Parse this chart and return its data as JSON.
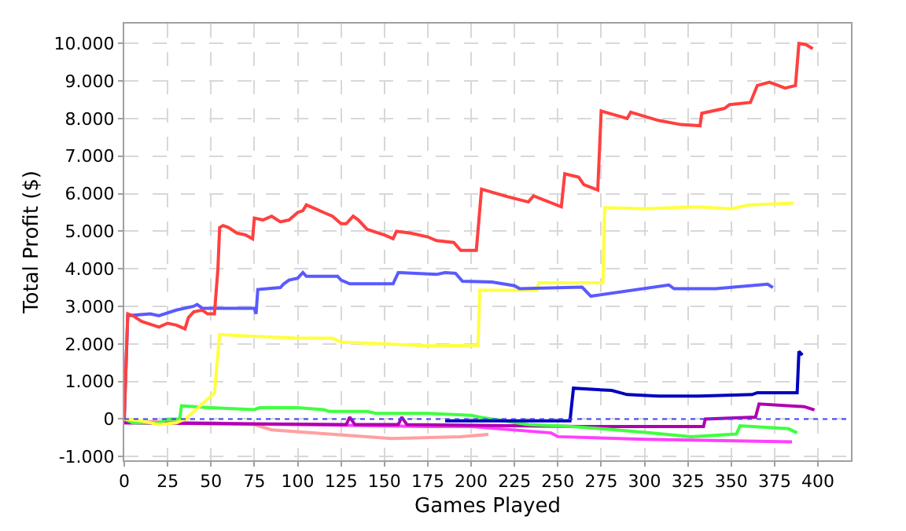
{
  "chart_data": {
    "type": "line",
    "xlabel": "Games Played",
    "ylabel": "Total Profit ($)",
    "xlim": [
      0,
      419
    ],
    "xticks": [
      0,
      25,
      50,
      75,
      100,
      125,
      150,
      175,
      200,
      225,
      250,
      275,
      300,
      325,
      350,
      375,
      400
    ],
    "ylim": [
      -1100,
      10530
    ],
    "yticks": [
      {
        "value": -1000,
        "label": "-1.000"
      },
      0,
      {
        "value": 1000,
        "label": "1.000"
      },
      {
        "value": 2000,
        "label": "2.000"
      },
      {
        "value": 3000,
        "label": "3.000"
      },
      {
        "value": 4000,
        "label": "4.000"
      },
      {
        "value": 5000,
        "label": "5.000"
      },
      {
        "value": 6000,
        "label": "6.000"
      },
      {
        "value": 7000,
        "label": "7.000"
      },
      {
        "value": 8000,
        "label": "8.000"
      },
      {
        "value": 9000,
        "label": "9.000"
      },
      {
        "value": 10000,
        "label": "10.000"
      }
    ],
    "grid": true,
    "marker": "none",
    "line_style": "solid",
    "ref_lines": [
      {
        "axis": "y",
        "value": 0,
        "color": "#4040ff",
        "line_style": "dotted"
      }
    ],
    "series": [
      {
        "color": "#ffa0a0",
        "x": [
          0,
          50,
          75,
          85,
          124,
          154,
          194,
          210
        ],
        "values": [
          -50,
          -100,
          -150,
          -290,
          -420,
          -520,
          -470,
          -410
        ]
      },
      {
        "color": "#ff40ff",
        "x": [
          0,
          100,
          175,
          200,
          246,
          250,
          300,
          385
        ],
        "values": [
          -100,
          -150,
          -200,
          -200,
          -370,
          -470,
          -540,
          -610
        ]
      },
      {
        "color": "#b000b0",
        "x": [
          0,
          128,
          130,
          133,
          158,
          160,
          163,
          264,
          334,
          335,
          364,
          366,
          392,
          398
        ],
        "values": [
          -100,
          -150,
          50,
          -150,
          -150,
          50,
          -150,
          -200,
          -200,
          0,
          50,
          400,
          330,
          240
        ]
      },
      {
        "color": "#40ff40",
        "x": [
          0,
          5,
          20,
          25,
          32,
          33,
          50,
          75,
          78,
          100,
          115,
          118,
          140,
          145,
          175,
          200,
          206,
          233,
          258,
          278,
          303,
          327,
          353,
          355,
          383,
          388
        ],
        "values": [
          0,
          -100,
          -100,
          0,
          0,
          350,
          300,
          250,
          300,
          300,
          250,
          200,
          200,
          150,
          150,
          100,
          40,
          -150,
          -200,
          -270,
          -370,
          -470,
          -400,
          -180,
          -260,
          -370
        ]
      },
      {
        "color": "#0000c0",
        "x": [
          185,
          257,
          259,
          281,
          290,
          308,
          331,
          362,
          365,
          388,
          389,
          391
        ],
        "values": [
          -50,
          -50,
          820,
          760,
          650,
          610,
          610,
          650,
          700,
          700,
          1800,
          1700
        ]
      },
      {
        "color": "#ffff40",
        "x": [
          0,
          10,
          20,
          30,
          35,
          45,
          52,
          55,
          75,
          100,
          120,
          125,
          150,
          175,
          204,
          205,
          238,
          239,
          276,
          277,
          300,
          330,
          350,
          360,
          386
        ],
        "values": [
          0,
          -50,
          -150,
          -100,
          0,
          400,
          700,
          2250,
          2200,
          2150,
          2150,
          2050,
          2000,
          1950,
          1960,
          3430,
          3430,
          3630,
          3630,
          5630,
          5600,
          5650,
          5600,
          5700,
          5750
        ]
      },
      {
        "color": "#5a5aff",
        "x": [
          0,
          2,
          15,
          20,
          30,
          40,
          42,
          45,
          75,
          76,
          77,
          90,
          92,
          95,
          100,
          103,
          105,
          123,
          125,
          130,
          155,
          158,
          180,
          185,
          191,
          195,
          212,
          225,
          228,
          264,
          269,
          314,
          317,
          341,
          371,
          374
        ],
        "values": [
          0,
          2750,
          2800,
          2750,
          2900,
          3000,
          3050,
          2950,
          2950,
          2800,
          3450,
          3500,
          3600,
          3700,
          3750,
          3900,
          3800,
          3800,
          3700,
          3600,
          3600,
          3900,
          3850,
          3900,
          3880,
          3670,
          3650,
          3550,
          3470,
          3510,
          3270,
          3570,
          3470,
          3470,
          3590,
          3500
        ]
      },
      {
        "color": "#ff4040",
        "x": [
          0,
          2,
          5,
          10,
          20,
          25,
          30,
          35,
          37,
          40,
          45,
          48,
          52,
          54,
          55,
          57,
          60,
          65,
          70,
          74,
          75,
          80,
          85,
          90,
          95,
          100,
          103,
          105,
          110,
          115,
          120,
          125,
          128,
          132,
          135,
          140,
          150,
          155,
          157,
          165,
          175,
          180,
          190,
          194,
          203,
          206,
          221,
          233,
          236,
          252,
          254,
          262,
          265,
          273,
          275,
          290,
          292,
          308,
          321,
          332,
          333,
          346,
          349,
          361,
          365,
          372,
          381,
          387,
          389,
          393,
          397
        ],
        "values": [
          0,
          2800,
          2750,
          2600,
          2450,
          2550,
          2500,
          2400,
          2700,
          2850,
          2900,
          2800,
          2800,
          4000,
          5100,
          5150,
          5100,
          4950,
          4900,
          4800,
          5350,
          5300,
          5400,
          5250,
          5300,
          5500,
          5550,
          5700,
          5600,
          5500,
          5400,
          5200,
          5200,
          5400,
          5300,
          5050,
          4900,
          4800,
          5000,
          4950,
          4850,
          4750,
          4700,
          4490,
          4490,
          6120,
          5920,
          5780,
          5940,
          5650,
          6530,
          6440,
          6240,
          6100,
          8200,
          8000,
          8170,
          7950,
          7840,
          7810,
          8140,
          8270,
          8370,
          8430,
          8880,
          8970,
          8810,
          8880,
          10000,
          9970,
          9860
        ]
      }
    ]
  }
}
